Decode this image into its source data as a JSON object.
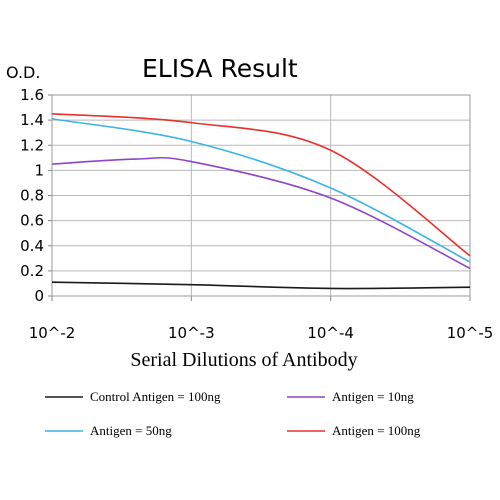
{
  "chart_data": {
    "type": "line",
    "title": "ELISA Result",
    "ylabel": "O.D.",
    "xlabel": "Serial Dilutions of Antibody",
    "x_tick_labels": [
      "10^-2",
      "10^-3",
      "10^-4",
      "10^-5"
    ],
    "x": [
      0.01,
      0.001,
      0.0001,
      1e-05
    ],
    "x_scale": "log",
    "y_ticks": [
      "0",
      "0.2",
      "0.4",
      "0.6",
      "0.8",
      "1",
      "1.2",
      "1.4",
      "1.6"
    ],
    "ylim": [
      0,
      1.6
    ],
    "grid": true,
    "legend_position": "bottom",
    "series": [
      {
        "name": "Control Antigen = 100ng",
        "color": "#1a1a1a",
        "x": [
          0.01,
          0.001,
          0.0001,
          1e-05
        ],
        "values": [
          0.11,
          0.09,
          0.06,
          0.07
        ]
      },
      {
        "name": "Antigen = 10ng",
        "color": "#8e44c9",
        "x": [
          0.01,
          0.0025,
          0.001,
          0.0001,
          1e-05
        ],
        "values": [
          1.05,
          1.09,
          1.07,
          0.78,
          0.22
        ]
      },
      {
        "name": "Antigen = 50ng",
        "color": "#3cb4e6",
        "x": [
          0.01,
          0.001,
          0.0001,
          1e-05
        ],
        "values": [
          1.41,
          1.23,
          0.86,
          0.27
        ]
      },
      {
        "name": "Antigen = 100ng",
        "color": "#e8312f",
        "x": [
          0.01,
          0.001,
          0.0001,
          1e-05
        ],
        "values": [
          1.45,
          1.38,
          1.16,
          0.32
        ]
      }
    ]
  }
}
